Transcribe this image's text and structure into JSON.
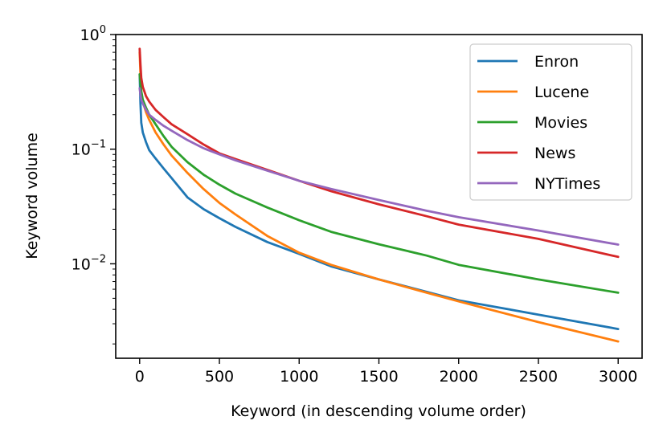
{
  "chart_data": {
    "type": "line",
    "title": "",
    "xlabel": "Keyword (in descending volume order)",
    "ylabel": "Keyword volume",
    "xlim": [
      -150,
      3150
    ],
    "ylim": [
      0.0015,
      1.0
    ],
    "yscale": "log",
    "grid": false,
    "legend_position": "top-right",
    "x_ticks": [
      0,
      500,
      1000,
      1500,
      2000,
      2500,
      3000
    ],
    "x_tick_labels": [
      "0",
      "500",
      "1000",
      "1500",
      "2000",
      "2500",
      "3000"
    ],
    "y_ticks": [
      1.0,
      0.1,
      0.01
    ],
    "y_tick_labels": [
      {
        "base": "10",
        "exp": "0"
      },
      {
        "base": "10",
        "exp": "−1"
      },
      {
        "base": "10",
        "exp": "−2"
      }
    ],
    "series": [
      {
        "name": "Enron",
        "color": "#1f77b4",
        "x": [
          0,
          5,
          10,
          20,
          40,
          60,
          100,
          150,
          200,
          300,
          400,
          500,
          600,
          800,
          1000,
          1200,
          1500,
          1800,
          2000,
          2500,
          3000
        ],
        "y": [
          0.45,
          0.25,
          0.17,
          0.14,
          0.115,
          0.098,
          0.083,
          0.068,
          0.056,
          0.038,
          0.03,
          0.025,
          0.021,
          0.0155,
          0.0122,
          0.0095,
          0.0073,
          0.0057,
          0.0048,
          0.0036,
          0.0027
        ]
      },
      {
        "name": "Lucene",
        "color": "#ff7f0e",
        "x": [
          0,
          5,
          10,
          20,
          40,
          60,
          100,
          150,
          200,
          300,
          400,
          500,
          600,
          800,
          1000,
          1200,
          1500,
          1800,
          2000,
          2500,
          3000
        ],
        "y": [
          0.7,
          0.45,
          0.32,
          0.26,
          0.21,
          0.18,
          0.14,
          0.11,
          0.088,
          0.062,
          0.045,
          0.034,
          0.027,
          0.0175,
          0.0125,
          0.0098,
          0.0073,
          0.0056,
          0.0047,
          0.0031,
          0.0021
        ]
      },
      {
        "name": "Movies",
        "color": "#2ca02c",
        "x": [
          0,
          5,
          10,
          20,
          40,
          60,
          100,
          150,
          200,
          300,
          400,
          500,
          600,
          800,
          1000,
          1200,
          1500,
          1800,
          2000,
          2500,
          3000
        ],
        "y": [
          0.45,
          0.37,
          0.32,
          0.27,
          0.23,
          0.2,
          0.165,
          0.13,
          0.105,
          0.077,
          0.06,
          0.049,
          0.041,
          0.031,
          0.024,
          0.019,
          0.0148,
          0.0118,
          0.0098,
          0.0073,
          0.0056
        ]
      },
      {
        "name": "News",
        "color": "#d62728",
        "x": [
          0,
          5,
          10,
          20,
          40,
          60,
          100,
          150,
          200,
          300,
          400,
          500,
          600,
          800,
          1000,
          1200,
          1500,
          1800,
          2000,
          2500,
          3000
        ],
        "y": [
          0.75,
          0.55,
          0.42,
          0.35,
          0.29,
          0.26,
          0.22,
          0.19,
          0.165,
          0.135,
          0.11,
          0.092,
          0.082,
          0.066,
          0.053,
          0.043,
          0.033,
          0.026,
          0.022,
          0.0165,
          0.0115
        ]
      },
      {
        "name": "NYTimes",
        "color": "#9467bd",
        "x": [
          0,
          5,
          10,
          20,
          40,
          60,
          100,
          150,
          200,
          300,
          400,
          500,
          600,
          800,
          1000,
          1200,
          1500,
          1800,
          2000,
          2500,
          3000
        ],
        "y": [
          0.34,
          0.3,
          0.27,
          0.25,
          0.22,
          0.2,
          0.18,
          0.16,
          0.145,
          0.12,
          0.102,
          0.09,
          0.08,
          0.065,
          0.053,
          0.045,
          0.036,
          0.029,
          0.0255,
          0.0195,
          0.0147
        ]
      }
    ]
  }
}
